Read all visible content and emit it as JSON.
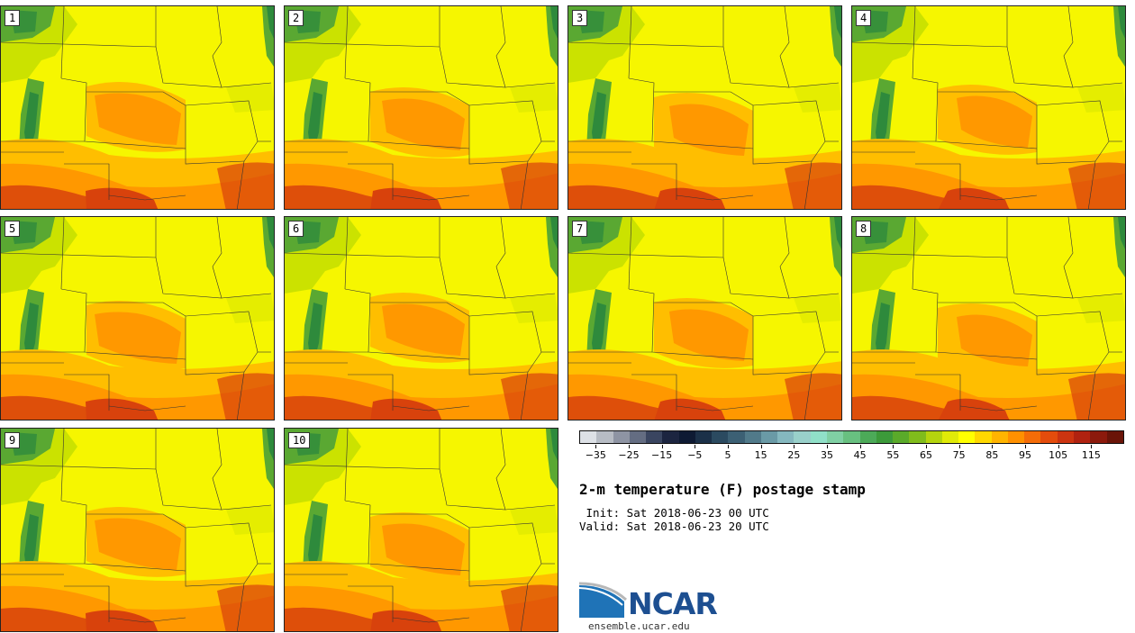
{
  "figure": {
    "title": "2-m temperature (F) postage stamp",
    "init": " Init: Sat 2018-06-23 00 UTC",
    "valid": "Valid: Sat 2018-06-23 20 UTC",
    "logo_text": "NCAR",
    "website": "ensemble.ucar.edu"
  },
  "members": [
    "1",
    "2",
    "3",
    "4",
    "5",
    "6",
    "7",
    "8",
    "9",
    "10"
  ],
  "colorbar": {
    "colors": [
      "#dde1e6",
      "#b7bcc4",
      "#8e94a3",
      "#646d82",
      "#3a4560",
      "#1c2540",
      "#0e1a33",
      "#1b3048",
      "#2b4a60",
      "#3c6074",
      "#517a8a",
      "#6a9aa6",
      "#85b8bf",
      "#99d0ca",
      "#90e0c8",
      "#80d0a4",
      "#68c080",
      "#4caa58",
      "#3c9a3a",
      "#5aaa2a",
      "#80bc1c",
      "#b4d40e",
      "#e0ea08",
      "#ffff00",
      "#ffd800",
      "#ffb400",
      "#ff9000",
      "#f46c08",
      "#e44c0c",
      "#cc3410",
      "#b02210",
      "#8c1a0c",
      "#6a1408"
    ],
    "tick_labels": [
      "−35",
      "−25",
      "−15",
      "−5",
      "5",
      "15",
      "25",
      "35",
      "45",
      "55",
      "65",
      "75",
      "85",
      "95",
      "105",
      "115"
    ],
    "range_min": -40,
    "range_max": 125,
    "tick_start": -35,
    "tick_step": 10
  },
  "legend_colors": {
    "hot": "#d8420c",
    "warm": "#ff9800",
    "mild": "#ffbe00",
    "cool": "#e3ec00",
    "green": "#5aa832",
    "dark_green": "#2e8a3c",
    "base": "#f6f600"
  }
}
